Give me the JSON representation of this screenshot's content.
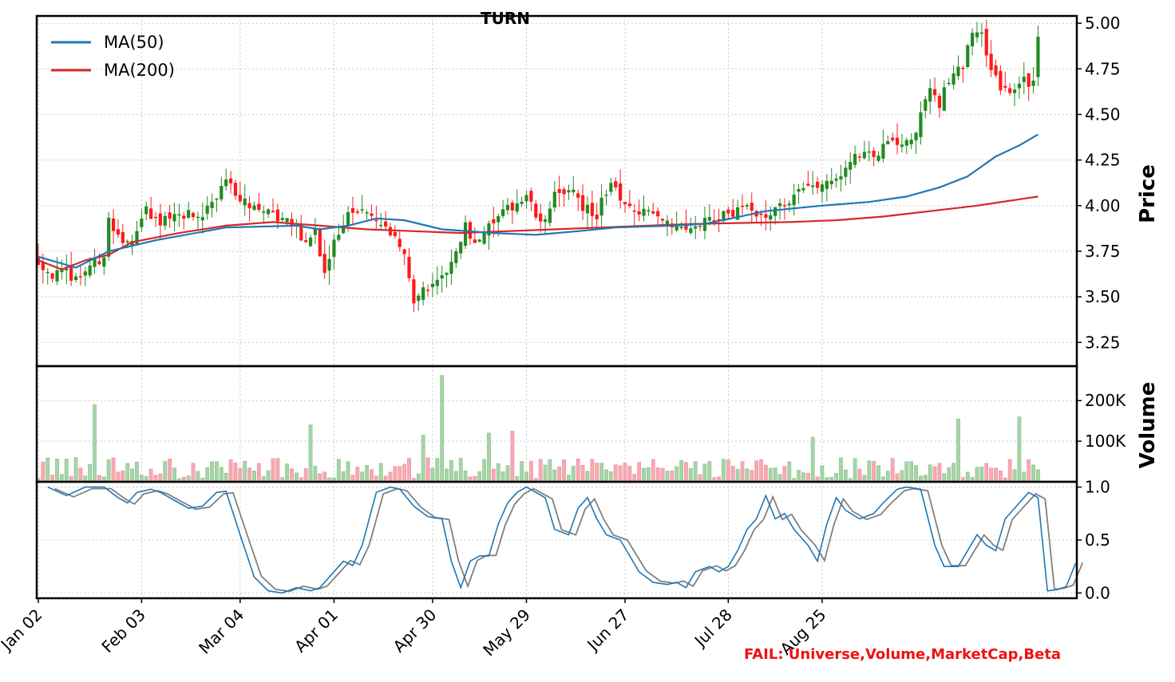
{
  "title": "TURN",
  "fail_message": "FAIL: Universe,Volume,MarketCap,Beta",
  "colors": {
    "up": "#228b22",
    "down": "#ff1a1a",
    "up_volume": "#a6d4a6",
    "down_volume": "#f7a9b2",
    "ma50": "#1f77b4",
    "ma200": "#d62728",
    "stoch_k": "#1f77b4",
    "stoch_d": "#808080"
  },
  "chart_data": [
    {
      "type": "candlestick",
      "panel": "price",
      "ylabel": "Price",
      "ylim": [
        3.12,
        5.04
      ],
      "yticks": [
        "3.25",
        "3.50",
        "3.75",
        "4.00",
        "4.25",
        "4.50",
        "4.75",
        "5.00"
      ],
      "grid": true,
      "legend_position": "top-left",
      "x_tick_labels": [
        "Jan 02",
        "Feb 03",
        "Mar 04",
        "Apr 01",
        "Apr 30",
        "May 29",
        "Jun 27",
        "Jul 28",
        "Aug 25"
      ],
      "legend": [
        {
          "name": "MA(50)",
          "color": "#1f77b4"
        },
        {
          "name": "MA(200)",
          "color": "#d62728"
        }
      ],
      "close_anchors": [
        [
          0,
          3.7
        ],
        [
          3,
          3.62
        ],
        [
          6,
          3.63
        ],
        [
          8,
          3.6
        ],
        [
          11,
          3.67
        ],
        [
          14,
          3.72
        ],
        [
          15,
          3.92
        ],
        [
          18,
          3.8
        ],
        [
          21,
          3.85
        ],
        [
          23,
          3.98
        ],
        [
          25,
          3.92
        ],
        [
          28,
          3.92
        ],
        [
          31,
          3.95
        ],
        [
          35,
          3.95
        ],
        [
          38,
          4.05
        ],
        [
          40,
          4.12
        ],
        [
          43,
          4.05
        ],
        [
          46,
          3.98
        ],
        [
          48,
          3.97
        ],
        [
          51,
          3.93
        ],
        [
          54,
          3.92
        ],
        [
          57,
          3.78
        ],
        [
          59,
          3.86
        ],
        [
          61,
          3.62
        ],
        [
          63,
          3.8
        ],
        [
          66,
          3.95
        ],
        [
          69,
          3.97
        ],
        [
          72,
          3.92
        ],
        [
          75,
          3.83
        ],
        [
          78,
          3.75
        ],
        [
          80,
          3.48
        ],
        [
          83,
          3.55
        ],
        [
          86,
          3.6
        ],
        [
          88,
          3.68
        ],
        [
          91,
          3.9
        ],
        [
          93,
          3.78
        ],
        [
          96,
          3.9
        ],
        [
          98,
          3.93
        ],
        [
          101,
          4.0
        ],
        [
          104,
          4.05
        ],
        [
          107,
          3.9
        ],
        [
          110,
          4.05
        ],
        [
          113,
          4.1
        ],
        [
          116,
          4.0
        ],
        [
          119,
          3.95
        ],
        [
          122,
          4.15
        ],
        [
          125,
          3.98
        ],
        [
          128,
          3.95
        ],
        [
          131,
          3.98
        ],
        [
          134,
          3.92
        ],
        [
          137,
          3.88
        ],
        [
          140,
          3.9
        ],
        [
          143,
          3.92
        ],
        [
          146,
          3.95
        ],
        [
          149,
          3.97
        ],
        [
          152,
          3.98
        ],
        [
          155,
          3.95
        ],
        [
          158,
          4.0
        ],
        [
          161,
          4.05
        ],
        [
          164,
          4.1
        ],
        [
          167,
          4.12
        ],
        [
          170,
          4.15
        ],
        [
          173,
          4.25
        ],
        [
          176,
          4.3
        ],
        [
          178,
          4.25
        ],
        [
          181,
          4.35
        ],
        [
          184,
          4.33
        ],
        [
          187,
          4.4
        ],
        [
          190,
          4.65
        ],
        [
          192,
          4.55
        ],
        [
          194,
          4.7
        ],
        [
          197,
          4.76
        ],
        [
          199,
          4.95
        ],
        [
          201,
          4.95
        ],
        [
          202,
          4.8
        ],
        [
          204,
          4.7
        ],
        [
          206,
          4.62
        ],
        [
          208,
          4.65
        ],
        [
          210,
          4.68
        ],
        [
          212,
          4.66
        ],
        [
          213,
          4.95
        ]
      ],
      "ma50_anchors": [
        [
          0,
          3.72
        ],
        [
          8,
          3.66
        ],
        [
          15,
          3.75
        ],
        [
          25,
          3.81
        ],
        [
          40,
          3.88
        ],
        [
          55,
          3.89
        ],
        [
          60,
          3.87
        ],
        [
          66,
          3.89
        ],
        [
          72,
          3.93
        ],
        [
          78,
          3.92
        ],
        [
          86,
          3.87
        ],
        [
          97,
          3.85
        ],
        [
          106,
          3.84
        ],
        [
          115,
          3.86
        ],
        [
          123,
          3.88
        ],
        [
          135,
          3.89
        ],
        [
          142,
          3.9
        ],
        [
          155,
          3.97
        ],
        [
          167,
          4.0
        ],
        [
          177,
          4.02
        ],
        [
          185,
          4.05
        ],
        [
          192,
          4.1
        ],
        [
          198,
          4.16
        ],
        [
          204,
          4.27
        ],
        [
          209,
          4.33
        ],
        [
          213,
          4.39
        ]
      ],
      "ma200_anchors": [
        [
          0,
          3.7
        ],
        [
          5,
          3.65
        ],
        [
          10,
          3.7
        ],
        [
          15,
          3.73
        ],
        [
          20,
          3.8
        ],
        [
          30,
          3.85
        ],
        [
          40,
          3.89
        ],
        [
          50,
          3.91
        ],
        [
          60,
          3.89
        ],
        [
          70,
          3.87
        ],
        [
          80,
          3.86
        ],
        [
          90,
          3.85
        ],
        [
          100,
          3.86
        ],
        [
          110,
          3.87
        ],
        [
          120,
          3.88
        ],
        [
          130,
          3.89
        ],
        [
          140,
          3.9
        ],
        [
          150,
          3.905
        ],
        [
          160,
          3.91
        ],
        [
          170,
          3.92
        ],
        [
          180,
          3.94
        ],
        [
          190,
          3.97
        ],
        [
          200,
          4.0
        ],
        [
          213,
          4.05
        ]
      ]
    },
    {
      "type": "bar",
      "panel": "volume",
      "ylabel": "Volume",
      "ylim": [
        0,
        285000
      ],
      "yticks": [
        "100K",
        "200K"
      ],
      "grid": true,
      "spikes": [
        [
          12,
          190000
        ],
        [
          58,
          140000
        ],
        [
          86,
          262000
        ],
        [
          82,
          115000
        ],
        [
          96,
          120000
        ],
        [
          101,
          125000
        ],
        [
          165,
          110000
        ],
        [
          196,
          155000
        ],
        [
          209,
          160000
        ]
      ],
      "base_range": [
        8000,
        60000
      ]
    },
    {
      "type": "line",
      "panel": "stochastic",
      "ylim": [
        -0.05,
        1.05
      ],
      "yticks": [
        "0.0",
        "0.5",
        "1.0"
      ],
      "grid": true,
      "k_anchors": [
        [
          2,
          1.0
        ],
        [
          6,
          0.92
        ],
        [
          10,
          1.0
        ],
        [
          14,
          1.0
        ],
        [
          17,
          0.9
        ],
        [
          19,
          0.85
        ],
        [
          21,
          0.95
        ],
        [
          24,
          0.98
        ],
        [
          26,
          0.95
        ],
        [
          30,
          0.85
        ],
        [
          32,
          0.8
        ],
        [
          35,
          0.82
        ],
        [
          38,
          0.95
        ],
        [
          40,
          0.96
        ],
        [
          43,
          0.55
        ],
        [
          46,
          0.15
        ],
        [
          49,
          0.02
        ],
        [
          52,
          0.0
        ],
        [
          55,
          0.05
        ],
        [
          58,
          0.02
        ],
        [
          60,
          0.05
        ],
        [
          63,
          0.2
        ],
        [
          65,
          0.3
        ],
        [
          67,
          0.26
        ],
        [
          69,
          0.45
        ],
        [
          72,
          0.95
        ],
        [
          75,
          1.0
        ],
        [
          77,
          0.98
        ],
        [
          80,
          0.82
        ],
        [
          83,
          0.72
        ],
        [
          86,
          0.7
        ],
        [
          88,
          0.3
        ],
        [
          90,
          0.05
        ],
        [
          92,
          0.3
        ],
        [
          94,
          0.35
        ],
        [
          96,
          0.35
        ],
        [
          98,
          0.65
        ],
        [
          100,
          0.85
        ],
        [
          102,
          0.95
        ],
        [
          104,
          1.0
        ],
        [
          106,
          0.95
        ],
        [
          108,
          0.9
        ],
        [
          110,
          0.6
        ],
        [
          113,
          0.55
        ],
        [
          115,
          0.8
        ],
        [
          117,
          0.9
        ],
        [
          119,
          0.7
        ],
        [
          121,
          0.55
        ],
        [
          124,
          0.5
        ],
        [
          126,
          0.35
        ],
        [
          128,
          0.2
        ],
        [
          131,
          0.1
        ],
        [
          134,
          0.08
        ],
        [
          136,
          0.1
        ],
        [
          138,
          0.05
        ],
        [
          140,
          0.2
        ],
        [
          143,
          0.25
        ],
        [
          145,
          0.2
        ],
        [
          147,
          0.25
        ],
        [
          149,
          0.4
        ],
        [
          151,
          0.6
        ],
        [
          153,
          0.7
        ],
        [
          155,
          0.92
        ],
        [
          157,
          0.7
        ],
        [
          159,
          0.75
        ],
        [
          161,
          0.6
        ],
        [
          164,
          0.45
        ],
        [
          166,
          0.3
        ],
        [
          168,
          0.65
        ],
        [
          170,
          0.9
        ],
        [
          172,
          0.78
        ],
        [
          175,
          0.7
        ],
        [
          178,
          0.75
        ],
        [
          180,
          0.85
        ],
        [
          183,
          0.98
        ],
        [
          185,
          1.0
        ],
        [
          188,
          0.98
        ],
        [
          191,
          0.45
        ],
        [
          193,
          0.25
        ],
        [
          196,
          0.25
        ],
        [
          198,
          0.4
        ],
        [
          200,
          0.55
        ],
        [
          202,
          0.45
        ],
        [
          204,
          0.4
        ],
        [
          206,
          0.7
        ],
        [
          209,
          0.85
        ],
        [
          211,
          0.95
        ],
        [
          213,
          0.9
        ],
        [
          215,
          0.02
        ],
        [
          217,
          0.03
        ],
        [
          219,
          0.06
        ],
        [
          221,
          0.28
        ]
      ]
    }
  ]
}
